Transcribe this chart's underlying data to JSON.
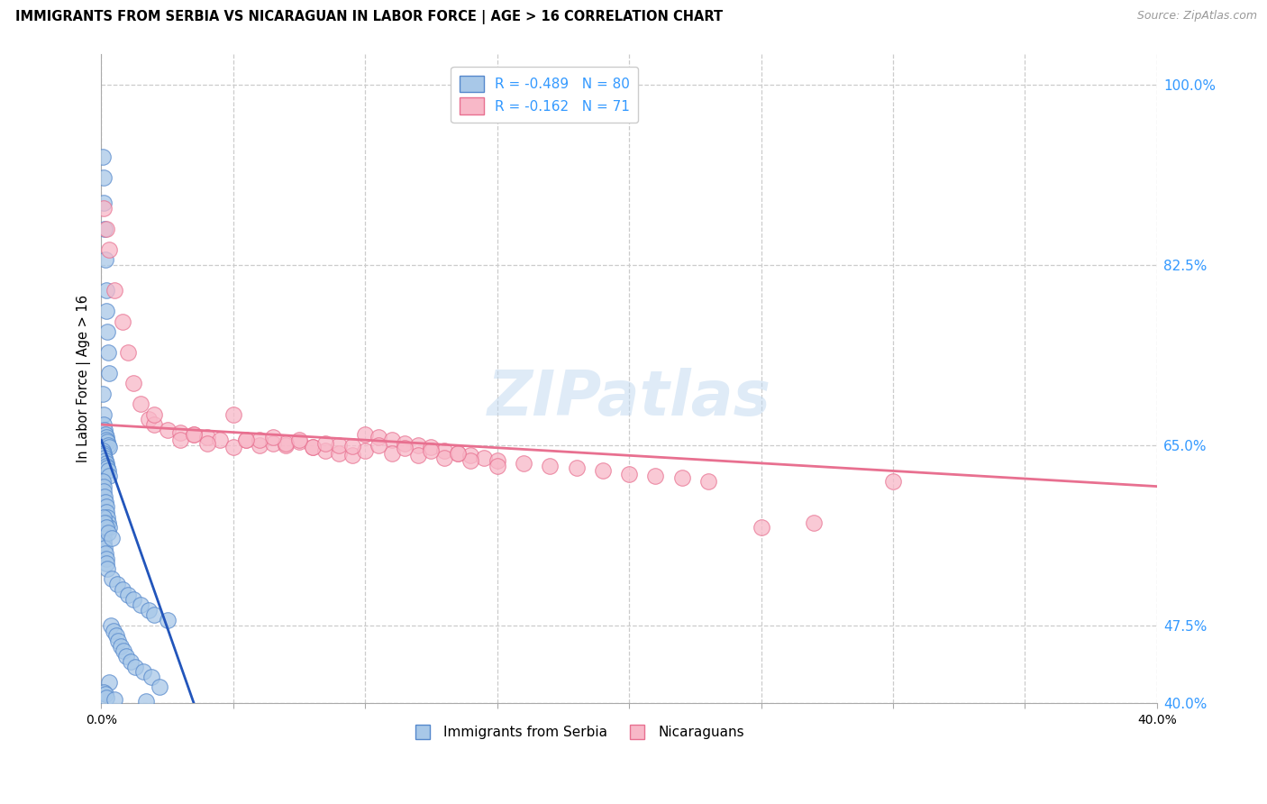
{
  "title": "IMMIGRANTS FROM SERBIA VS NICARAGUAN IN LABOR FORCE | AGE > 16 CORRELATION CHART",
  "source": "Source: ZipAtlas.com",
  "ylabel_label": "In Labor Force | Age > 16",
  "yticks": [
    40.0,
    47.5,
    65.0,
    82.5,
    100.0
  ],
  "xtick_positions": [
    0.0,
    5.0,
    10.0,
    15.0,
    20.0,
    25.0,
    30.0,
    35.0,
    40.0
  ],
  "xtick_labels": [
    "0.0%",
    "",
    "",
    "",
    "",
    "",
    "",
    "",
    "40.0%"
  ],
  "xmin": 0.0,
  "xmax": 40.0,
  "ymin": 40.0,
  "ymax": 103.0,
  "serbia_color": "#a8c8e8",
  "serbia_edge_color": "#5588cc",
  "nicaragua_color": "#f8b8c8",
  "nicaragua_edge_color": "#e87090",
  "serbia_line_color": "#2255bb",
  "nicaragua_line_color": "#e87090",
  "legend_serbia_label": "Immigrants from Serbia",
  "legend_nicaragua_label": "Nicaraguans",
  "R_serbia": -0.489,
  "N_serbia": 80,
  "R_nicaragua": -0.162,
  "N_nicaragua": 71,
  "serbia_x": [
    0.05,
    0.08,
    0.1,
    0.12,
    0.15,
    0.18,
    0.2,
    0.22,
    0.25,
    0.28,
    0.05,
    0.08,
    0.1,
    0.12,
    0.15,
    0.18,
    0.2,
    0.22,
    0.25,
    0.28,
    0.05,
    0.08,
    0.1,
    0.12,
    0.15,
    0.18,
    0.2,
    0.22,
    0.25,
    0.3,
    0.05,
    0.08,
    0.1,
    0.12,
    0.15,
    0.18,
    0.2,
    0.22,
    0.25,
    0.3,
    0.05,
    0.08,
    0.1,
    0.12,
    0.15,
    0.18,
    0.2,
    0.22,
    0.4,
    0.6,
    0.8,
    1.0,
    1.2,
    1.5,
    1.8,
    2.0,
    2.5,
    0.35,
    0.45,
    0.55,
    0.65,
    0.75,
    0.85,
    0.95,
    1.1,
    1.3,
    1.6,
    1.9,
    0.3,
    2.2,
    0.1,
    0.15,
    0.2,
    0.5,
    1.7,
    0.08,
    0.12,
    0.18,
    0.25,
    0.4
  ],
  "serbia_y": [
    93.0,
    91.0,
    88.5,
    86.0,
    83.0,
    80.0,
    78.0,
    76.0,
    74.0,
    72.0,
    70.0,
    68.0,
    67.0,
    66.5,
    66.0,
    65.8,
    65.5,
    65.3,
    65.0,
    64.8,
    64.5,
    64.2,
    64.0,
    63.8,
    63.5,
    63.2,
    63.0,
    62.8,
    62.5,
    62.0,
    61.5,
    61.0,
    60.5,
    60.0,
    59.5,
    59.0,
    58.5,
    58.0,
    57.5,
    57.0,
    56.5,
    56.0,
    55.5,
    55.0,
    54.5,
    54.0,
    53.5,
    53.0,
    52.0,
    51.5,
    51.0,
    50.5,
    50.0,
    49.5,
    49.0,
    48.5,
    48.0,
    47.5,
    47.0,
    46.5,
    46.0,
    45.5,
    45.0,
    44.5,
    44.0,
    43.5,
    43.0,
    42.5,
    42.0,
    41.5,
    41.0,
    40.8,
    40.5,
    40.3,
    40.1,
    58.0,
    57.5,
    57.0,
    56.5,
    56.0
  ],
  "nicaragua_x": [
    0.1,
    0.2,
    0.3,
    0.5,
    0.8,
    1.0,
    1.2,
    1.5,
    1.8,
    2.0,
    2.5,
    3.0,
    3.5,
    4.0,
    4.5,
    5.0,
    5.5,
    6.0,
    6.5,
    7.0,
    7.5,
    8.0,
    8.5,
    9.0,
    9.5,
    10.0,
    10.5,
    11.0,
    11.5,
    12.0,
    12.5,
    13.0,
    13.5,
    14.0,
    14.5,
    15.0,
    16.0,
    17.0,
    18.0,
    19.0,
    20.0,
    21.0,
    22.0,
    23.0,
    25.0,
    27.0,
    30.0,
    3.0,
    4.0,
    5.0,
    6.0,
    7.0,
    8.0,
    9.0,
    10.0,
    11.0,
    12.0,
    13.0,
    14.0,
    6.5,
    7.5,
    8.5,
    9.5,
    10.5,
    11.5,
    12.5,
    13.5,
    2.0,
    3.5,
    5.5,
    15.0
  ],
  "nicaragua_y": [
    88.0,
    86.0,
    84.0,
    80.0,
    77.0,
    74.0,
    71.0,
    69.0,
    67.5,
    67.0,
    66.5,
    66.2,
    66.0,
    65.8,
    65.5,
    68.0,
    65.5,
    65.0,
    65.2,
    65.0,
    65.3,
    64.8,
    64.5,
    64.2,
    64.0,
    66.0,
    65.8,
    65.5,
    65.2,
    65.0,
    64.8,
    64.5,
    64.2,
    64.0,
    63.8,
    63.5,
    63.2,
    63.0,
    62.8,
    62.5,
    62.2,
    62.0,
    61.8,
    61.5,
    57.0,
    57.5,
    61.5,
    65.5,
    65.2,
    64.8,
    65.5,
    65.2,
    64.8,
    65.0,
    64.5,
    64.2,
    64.0,
    63.8,
    63.5,
    65.8,
    65.5,
    65.2,
    64.9,
    65.0,
    64.7,
    64.5,
    64.2,
    68.0,
    66.0,
    65.5,
    63.0
  ],
  "serbia_trend_x": [
    0.0,
    3.5
  ],
  "serbia_trend_y": [
    65.5,
    40.0
  ],
  "nicaragua_trend_x": [
    0.0,
    40.0
  ],
  "nicaragua_trend_y": [
    67.0,
    61.0
  ],
  "watermark": "ZIPatlas",
  "watermark_color": "#c0d8f0",
  "watermark_alpha": 0.5,
  "watermark_fontsize": 50,
  "background_color": "#ffffff"
}
